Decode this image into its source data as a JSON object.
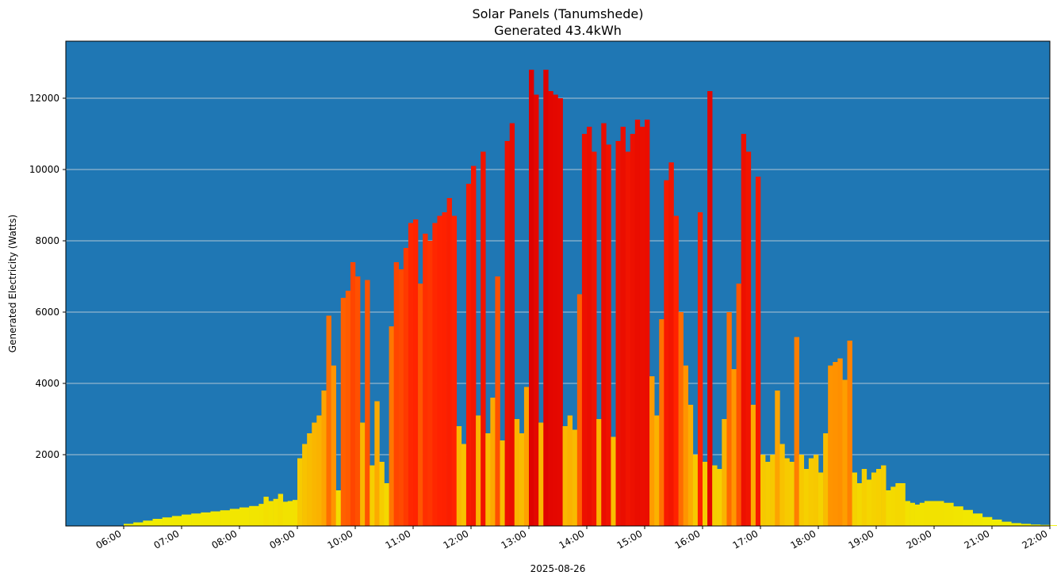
{
  "chart_data": {
    "type": "bar",
    "title": "Solar Panels (Tanumshede)",
    "subtitle": "Generated 43.4kWh",
    "xlabel": "2025-08-26",
    "ylabel": "Generated Electricity (Watts)",
    "background_color": "#1f77b4",
    "grid": "horizontal",
    "grid_color": "#e0e0e0",
    "bar_colormap": [
      "#f0f000",
      "#ff9900",
      "#ff2200",
      "#dd0000"
    ],
    "x_range_hours": [
      5.0,
      22.0
    ],
    "ylim": [
      0,
      13600
    ],
    "x_ticks": [
      "06:00",
      "07:00",
      "08:00",
      "09:00",
      "10:00",
      "11:00",
      "12:00",
      "13:00",
      "14:00",
      "15:00",
      "16:00",
      "17:00",
      "18:00",
      "19:00",
      "20:00",
      "21:00",
      "22:00"
    ],
    "y_ticks": [
      2000,
      4000,
      6000,
      8000,
      10000,
      12000
    ],
    "points": [
      [
        "06:00",
        60
      ],
      [
        "06:10",
        100
      ],
      [
        "06:20",
        150
      ],
      [
        "06:30",
        200
      ],
      [
        "06:40",
        240
      ],
      [
        "06:50",
        280
      ],
      [
        "07:00",
        320
      ],
      [
        "07:10",
        350
      ],
      [
        "07:20",
        380
      ],
      [
        "07:30",
        410
      ],
      [
        "07:40",
        440
      ],
      [
        "07:50",
        480
      ],
      [
        "08:00",
        520
      ],
      [
        "08:10",
        560
      ],
      [
        "08:20",
        620
      ],
      [
        "08:25",
        820
      ],
      [
        "08:30",
        700
      ],
      [
        "08:35",
        760
      ],
      [
        "08:40",
        900
      ],
      [
        "08:45",
        680
      ],
      [
        "08:50",
        700
      ],
      [
        "08:55",
        730
      ],
      [
        "09:00",
        1900
      ],
      [
        "09:05",
        2300
      ],
      [
        "09:10",
        2600
      ],
      [
        "09:15",
        2900
      ],
      [
        "09:20",
        3100
      ],
      [
        "09:25",
        3800
      ],
      [
        "09:30",
        5900
      ],
      [
        "09:35",
        4500
      ],
      [
        "09:40",
        1000
      ],
      [
        "09:45",
        6400
      ],
      [
        "09:50",
        6600
      ],
      [
        "09:55",
        7400
      ],
      [
        "10:00",
        7000
      ],
      [
        "10:05",
        2900
      ],
      [
        "10:10",
        6900
      ],
      [
        "10:15",
        1700
      ],
      [
        "10:20",
        3500
      ],
      [
        "10:25",
        1800
      ],
      [
        "10:30",
        1200
      ],
      [
        "10:35",
        5600
      ],
      [
        "10:40",
        7400
      ],
      [
        "10:45",
        7200
      ],
      [
        "10:50",
        7800
      ],
      [
        "10:55",
        8500
      ],
      [
        "11:00",
        8600
      ],
      [
        "11:05",
        6800
      ],
      [
        "11:10",
        8200
      ],
      [
        "11:15",
        8000
      ],
      [
        "11:20",
        8500
      ],
      [
        "11:25",
        8700
      ],
      [
        "11:30",
        8800
      ],
      [
        "11:35",
        9200
      ],
      [
        "11:40",
        8700
      ],
      [
        "11:45",
        2800
      ],
      [
        "11:50",
        2300
      ],
      [
        "11:55",
        9600
      ],
      [
        "12:00",
        10100
      ],
      [
        "12:05",
        3100
      ],
      [
        "12:10",
        10500
      ],
      [
        "12:15",
        2600
      ],
      [
        "12:20",
        3600
      ],
      [
        "12:25",
        7000
      ],
      [
        "12:30",
        2400
      ],
      [
        "12:35",
        10800
      ],
      [
        "12:40",
        11300
      ],
      [
        "12:45",
        3000
      ],
      [
        "12:50",
        2600
      ],
      [
        "12:55",
        3900
      ],
      [
        "13:00",
        12800
      ],
      [
        "13:05",
        12100
      ],
      [
        "13:10",
        2900
      ],
      [
        "13:15",
        12800
      ],
      [
        "13:20",
        12200
      ],
      [
        "13:25",
        12100
      ],
      [
        "13:30",
        12000
      ],
      [
        "13:35",
        2800
      ],
      [
        "13:40",
        3100
      ],
      [
        "13:45",
        2700
      ],
      [
        "13:50",
        6500
      ],
      [
        "13:55",
        11000
      ],
      [
        "14:00",
        11200
      ],
      [
        "14:05",
        10500
      ],
      [
        "14:10",
        3000
      ],
      [
        "14:15",
        11300
      ],
      [
        "14:20",
        10700
      ],
      [
        "14:25",
        2500
      ],
      [
        "14:30",
        10800
      ],
      [
        "14:35",
        11200
      ],
      [
        "14:40",
        10500
      ],
      [
        "14:45",
        11000
      ],
      [
        "14:50",
        11400
      ],
      [
        "14:55",
        11200
      ],
      [
        "15:00",
        11400
      ],
      [
        "15:05",
        4200
      ],
      [
        "15:10",
        3100
      ],
      [
        "15:15",
        5800
      ],
      [
        "15:20",
        9700
      ],
      [
        "15:25",
        10200
      ],
      [
        "15:30",
        8700
      ],
      [
        "15:35",
        6000
      ],
      [
        "15:40",
        4500
      ],
      [
        "15:45",
        3400
      ],
      [
        "15:50",
        2000
      ],
      [
        "15:55",
        8800
      ],
      [
        "16:00",
        1800
      ],
      [
        "16:05",
        12200
      ],
      [
        "16:10",
        1700
      ],
      [
        "16:15",
        1600
      ],
      [
        "16:20",
        3000
      ],
      [
        "16:25",
        6000
      ],
      [
        "16:30",
        4400
      ],
      [
        "16:35",
        6800
      ],
      [
        "16:40",
        11000
      ],
      [
        "16:45",
        10500
      ],
      [
        "16:50",
        3400
      ],
      [
        "16:55",
        9800
      ],
      [
        "17:00",
        2000
      ],
      [
        "17:05",
        1800
      ],
      [
        "17:10",
        2000
      ],
      [
        "17:15",
        3800
      ],
      [
        "17:20",
        2300
      ],
      [
        "17:25",
        1900
      ],
      [
        "17:30",
        1800
      ],
      [
        "17:35",
        5300
      ],
      [
        "17:40",
        2000
      ],
      [
        "17:45",
        1600
      ],
      [
        "17:50",
        1900
      ],
      [
        "17:55",
        2000
      ],
      [
        "18:00",
        1500
      ],
      [
        "18:05",
        2600
      ],
      [
        "18:10",
        4500
      ],
      [
        "18:15",
        4600
      ],
      [
        "18:20",
        4700
      ],
      [
        "18:25",
        4100
      ],
      [
        "18:30",
        5200
      ],
      [
        "18:35",
        1500
      ],
      [
        "18:40",
        1200
      ],
      [
        "18:45",
        1600
      ],
      [
        "18:50",
        1300
      ],
      [
        "18:55",
        1500
      ],
      [
        "19:00",
        1600
      ],
      [
        "19:05",
        1700
      ],
      [
        "19:10",
        1000
      ],
      [
        "19:15",
        1100
      ],
      [
        "19:20",
        1200
      ],
      [
        "19:25",
        1200
      ],
      [
        "19:30",
        700
      ],
      [
        "19:35",
        650
      ],
      [
        "19:40",
        600
      ],
      [
        "19:45",
        650
      ],
      [
        "19:50",
        700
      ],
      [
        "19:55",
        700
      ],
      [
        "20:00",
        700
      ],
      [
        "20:10",
        650
      ],
      [
        "20:20",
        550
      ],
      [
        "20:30",
        450
      ],
      [
        "20:40",
        350
      ],
      [
        "20:50",
        250
      ],
      [
        "21:00",
        180
      ],
      [
        "21:10",
        120
      ],
      [
        "21:20",
        80
      ],
      [
        "21:30",
        60
      ],
      [
        "21:40",
        40
      ],
      [
        "21:50",
        30
      ],
      [
        "22:00",
        20
      ],
      [
        "22:10",
        10
      ]
    ]
  }
}
